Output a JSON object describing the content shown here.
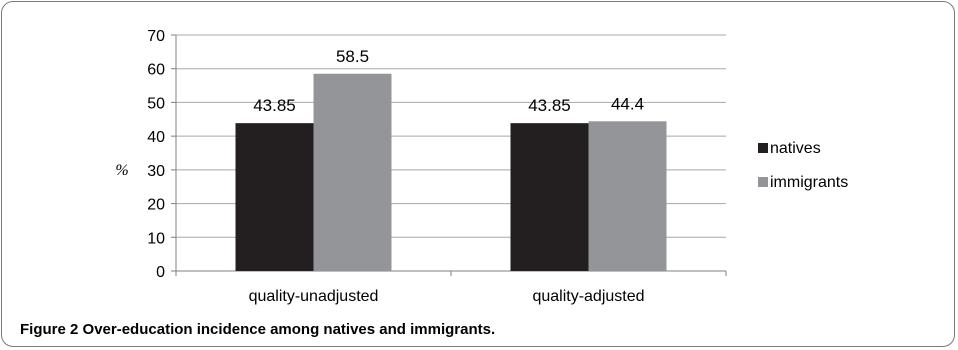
{
  "figure": {
    "label": "Figure 2",
    "caption": "Over-education incidence among natives and immigrants."
  },
  "chart_data": {
    "type": "bar",
    "categories": [
      "quality-unadjusted",
      "quality-adjusted"
    ],
    "series": [
      {
        "name": "natives",
        "values": [
          43.85,
          43.85
        ],
        "color": "#231f20"
      },
      {
        "name": "immigrants",
        "values": [
          58.5,
          44.4
        ],
        "color": "#939598"
      }
    ],
    "data_labels": [
      [
        "43.85",
        "58.5"
      ],
      [
        "43.85",
        "44.4"
      ]
    ],
    "ylabel": "%",
    "ylim": [
      0,
      70
    ],
    "yticks": [
      0,
      10,
      20,
      30,
      40,
      50,
      60,
      70
    ],
    "grid": true,
    "legend": "right"
  }
}
